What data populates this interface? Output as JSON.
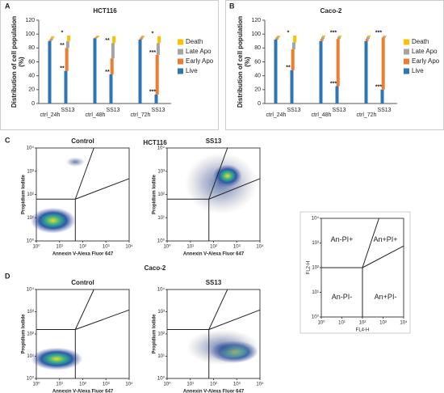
{
  "panel_labels": [
    "A",
    "B",
    "C",
    "D"
  ],
  "chart_data": [
    {
      "type": "bar",
      "stacked": true,
      "title": "HCT116",
      "ylabel": [
        "Distribution of cell population",
        "(%)"
      ],
      "categories": [
        "ctrl_24h",
        "SS13",
        "ctrl_48h",
        "SS13",
        "ctrl_72h",
        "SS13"
      ],
      "series": [
        {
          "name": "Live",
          "color": "#2e75b6",
          "values": [
            90,
            47,
            94,
            42,
            92,
            13
          ]
        },
        {
          "name": "Early Apo",
          "color": "#ed7d31",
          "values": [
            2,
            33,
            1,
            23,
            2,
            57
          ]
        },
        {
          "name": "Late Apo",
          "color": "#a5a5a5",
          "values": [
            2,
            10,
            1,
            22,
            2,
            17
          ]
        },
        {
          "name": "Death",
          "color": "#ffc000",
          "values": [
            3,
            8,
            2,
            10,
            2,
            10
          ]
        }
      ],
      "ylim": [
        0,
        120
      ],
      "yticks": [
        0,
        20,
        40,
        60,
        80,
        100,
        120
      ],
      "legend": "right",
      "annotations": [
        {
          "text": "**",
          "series": 0,
          "category": 1
        },
        {
          "text": "**",
          "series": 1,
          "category": 1
        },
        {
          "text": "*",
          "series": 3,
          "category": 1
        },
        {
          "text": "**",
          "series": 0,
          "category": 3
        },
        {
          "text": "**",
          "series": 2,
          "category": 3
        },
        {
          "text": "***",
          "series": 0,
          "category": 5
        },
        {
          "text": "***",
          "series": 1,
          "category": 5
        },
        {
          "text": "*",
          "series": 3,
          "category": 5
        }
      ]
    },
    {
      "type": "bar",
      "stacked": true,
      "title": "Caco-2",
      "ylabel": [
        "Distribution of cell population",
        "(%)"
      ],
      "categories": [
        "ctrl_24h",
        "SS13",
        "ctrl_48h",
        "SS13",
        "ctrl_72h",
        "SS13"
      ],
      "series": [
        {
          "name": "Live",
          "color": "#2e75b6",
          "values": [
            92,
            48,
            90,
            25,
            90,
            20
          ]
        },
        {
          "name": "Early Apo",
          "color": "#ed7d31",
          "values": [
            2,
            30,
            3,
            68,
            3,
            75
          ]
        },
        {
          "name": "Late Apo",
          "color": "#a5a5a5",
          "values": [
            2,
            10,
            3,
            3,
            3,
            2
          ]
        },
        {
          "name": "Death",
          "color": "#ffc000",
          "values": [
            2,
            10,
            2,
            2,
            2,
            1
          ]
        }
      ],
      "ylim": [
        0,
        120
      ],
      "yticks": [
        0,
        20,
        40,
        60,
        80,
        100,
        120
      ],
      "legend": "right",
      "annotations": [
        {
          "text": "**",
          "series": 0,
          "category": 1
        },
        {
          "text": "*",
          "series": 3,
          "category": 1
        },
        {
          "text": "***",
          "series": 0,
          "category": 3
        },
        {
          "text": "***",
          "series": 3,
          "category": 3
        },
        {
          "text": "***",
          "series": 0,
          "category": 5
        },
        {
          "text": "***",
          "series": 3,
          "category": 5
        }
      ]
    }
  ],
  "flow": {
    "row_c_title": "HCT116",
    "row_d_title": "Caco-2",
    "ticks": [
      {
        "value": 1,
        "label": "10⁰"
      },
      {
        "value": 10,
        "label": "10¹"
      },
      {
        "value": 100,
        "label": "10²"
      },
      {
        "value": 1000,
        "label": "10³"
      },
      {
        "value": 10000,
        "label": "10⁴"
      }
    ],
    "plots": [
      {
        "title": "Control",
        "ylabel": "Propidium Iodide",
        "xlabel": "Annexin V-Alexa Fluor 647"
      },
      {
        "title": "SS13",
        "ylabel": "Propidium Iodide",
        "xlabel": "Annexin V-Alexa Fluor 647"
      },
      {
        "title": "Control",
        "ylabel": "Propidium Iodide",
        "xlabel": "Annexin V-Alexa Fluor 647"
      },
      {
        "title": "SS13",
        "ylabel": "Propidium Iodide",
        "xlabel": "Annexin V-Alexa Fluor 647"
      }
    ],
    "quadrant": {
      "labels": [
        "An-PI+",
        "An+PI+",
        "An-PI-",
        "An+PI-"
      ],
      "xlabel": "FL4-H",
      "ylabel": "FL2-H"
    }
  }
}
